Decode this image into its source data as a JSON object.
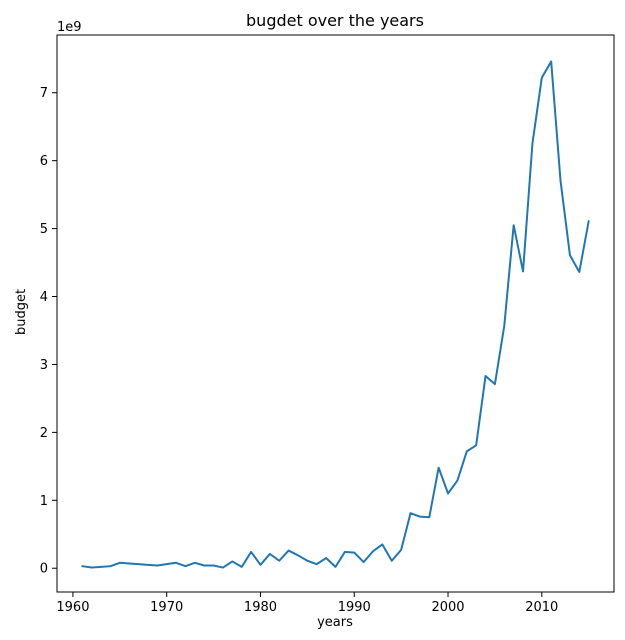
{
  "chart_data": {
    "type": "line",
    "title": "bugdet over the years",
    "xlabel": "years",
    "ylabel": "budget",
    "y_scale_label": "1e9",
    "xlim": [
      1958.3,
      2017.7
    ],
    "ylim": [
      -350000000,
      7850000000
    ],
    "x_ticks": [
      1960,
      1970,
      1980,
      1990,
      2000,
      2010
    ],
    "x_tick_labels": [
      "1960",
      "1970",
      "1980",
      "1990",
      "2000",
      "2010"
    ],
    "y_ticks": [
      0,
      1000000000,
      2000000000,
      3000000000,
      4000000000,
      5000000000,
      6000000000,
      7000000000
    ],
    "y_tick_labels": [
      "0",
      "1",
      "2",
      "3",
      "4",
      "5",
      "6",
      "7"
    ],
    "grid": false,
    "line_color": "#1f77b4",
    "series": [
      {
        "x": [
          1961,
          1962,
          1963,
          1964,
          1965,
          1966,
          1967,
          1968,
          1969,
          1970,
          1971,
          1972,
          1973,
          1974,
          1975,
          1976,
          1977,
          1978,
          1979,
          1980,
          1981,
          1982,
          1983,
          1984,
          1985,
          1986,
          1987,
          1988,
          1989,
          1990,
          1991,
          1992,
          1993,
          1994,
          1995,
          1996,
          1997,
          1998,
          1999,
          2000,
          2001,
          2002,
          2003,
          2004,
          2005,
          2006,
          2007,
          2008,
          2009,
          2010,
          2011,
          2012,
          2013,
          2014,
          2015
        ],
        "y": [
          30000000,
          10000000,
          20000000,
          30000000,
          80000000,
          70000000,
          60000000,
          50000000,
          40000000,
          60000000,
          80000000,
          30000000,
          80000000,
          40000000,
          40000000,
          10000000,
          100000000,
          20000000,
          240000000,
          50000000,
          210000000,
          110000000,
          260000000,
          190000000,
          110000000,
          60000000,
          150000000,
          20000000,
          240000000,
          230000000,
          90000000,
          250000000,
          350000000,
          110000000,
          270000000,
          810000000,
          760000000,
          750000000,
          1480000000,
          1100000000,
          1290000000,
          1720000000,
          1810000000,
          2830000000,
          2710000000,
          3570000000,
          5050000000,
          4370000000,
          6250000000,
          7220000000,
          7460000000,
          5700000000,
          4610000000,
          4360000000,
          5110000000
        ]
      }
    ]
  }
}
